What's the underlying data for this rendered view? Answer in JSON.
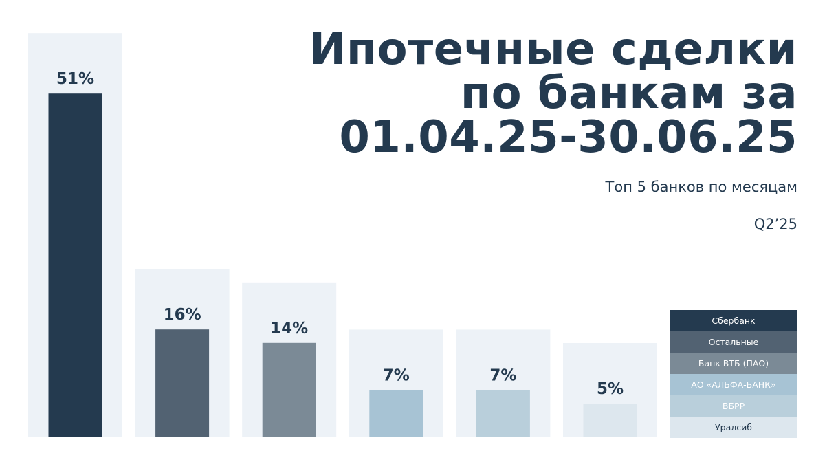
{
  "chart_data": {
    "type": "bar",
    "title_lines": [
      "Ипотечные сделки",
      "по банкам за",
      "01.04.25-30.06.25"
    ],
    "subtitle": "Топ 5 банков по месяцам",
    "period": "Q2’25",
    "categories": [
      "Сбербанк",
      "Остальные",
      "Банк ВТБ (ПАО)",
      "АО «АЛЬФА-БАНК»",
      "ВБРР",
      "Уралсиб"
    ],
    "values": [
      51,
      16,
      14,
      7,
      7,
      5
    ],
    "labels": [
      "51%",
      "16%",
      "14%",
      "7%",
      "7%",
      "5%"
    ],
    "colors": [
      "#243a4f",
      "#526272",
      "#7b8a96",
      "#a7c3d4",
      "#b9cfdb",
      "#dde7ee"
    ],
    "background_color": "#edf2f7",
    "legend_position": "bottom-right"
  }
}
